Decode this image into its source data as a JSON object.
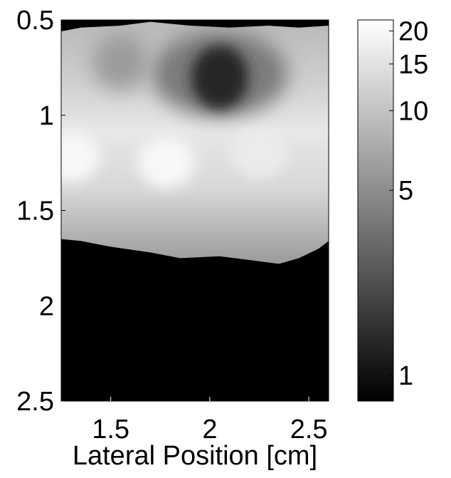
{
  "chart_data": {
    "type": "heatmap",
    "title": "",
    "xlabel": "Lateral Position [cm]",
    "ylabel": "",
    "xlim": [
      1.25,
      2.6
    ],
    "ylim": [
      0.5,
      2.5
    ],
    "y_reversed": true,
    "x_ticks": [
      "1.5",
      "2",
      "2.5"
    ],
    "y_ticks": [
      "0.5",
      "1",
      "1.5",
      "2",
      "2.5"
    ],
    "colormap": "gray",
    "colorbar": {
      "scale": "log",
      "range": [
        0.8,
        22
      ],
      "ticks": [
        "1",
        "5",
        "10",
        "15",
        "20"
      ]
    },
    "top_edge_depth": [
      [
        1.25,
        0.56
      ],
      [
        1.35,
        0.54
      ],
      [
        1.55,
        0.53
      ],
      [
        1.7,
        0.51
      ],
      [
        1.9,
        0.53
      ],
      [
        2.1,
        0.54
      ],
      [
        2.3,
        0.53
      ],
      [
        2.45,
        0.54
      ],
      [
        2.6,
        0.53
      ]
    ],
    "bottom_edge_depth": [
      [
        1.25,
        1.65
      ],
      [
        1.35,
        1.66
      ],
      [
        1.5,
        1.69
      ],
      [
        1.7,
        1.72
      ],
      [
        1.85,
        1.75
      ],
      [
        2.05,
        1.74
      ],
      [
        2.2,
        1.76
      ],
      [
        2.35,
        1.78
      ],
      [
        2.45,
        1.75
      ],
      [
        2.55,
        1.7
      ],
      [
        2.6,
        1.66
      ]
    ],
    "bright_spots": [
      {
        "x": 1.3,
        "depth": 1.22,
        "value": 20
      },
      {
        "x": 1.78,
        "depth": 1.25,
        "value": 20
      },
      {
        "x": 2.25,
        "depth": 1.2,
        "value": 17
      }
    ],
    "dark_spot": {
      "x": 2.05,
      "depth": 0.82,
      "value": 1.3
    }
  }
}
